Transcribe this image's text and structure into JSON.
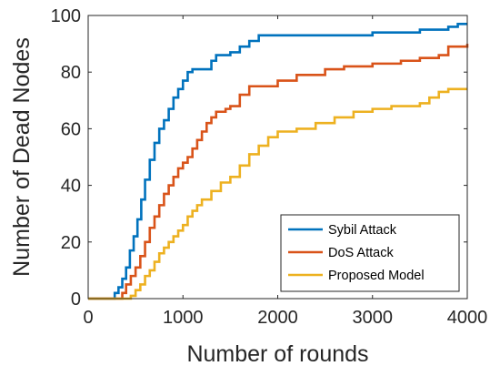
{
  "chart_data": {
    "type": "line",
    "title": "",
    "xlabel": "Number of rounds",
    "ylabel": "Number of Dead Nodes",
    "xlim": [
      0,
      4000
    ],
    "ylim": [
      0,
      100
    ],
    "xticks": [
      0,
      1000,
      2000,
      3000,
      4000
    ],
    "yticks": [
      0,
      20,
      40,
      60,
      80,
      100
    ],
    "grid": false,
    "legend_position": "bottom-right",
    "series": [
      {
        "name": "Sybil Attack",
        "color": "#0072BD",
        "x": [
          0,
          250,
          280,
          320,
          360,
          400,
          440,
          480,
          520,
          560,
          600,
          650,
          700,
          750,
          800,
          850,
          900,
          950,
          1000,
          1050,
          1100,
          1200,
          1300,
          1350,
          1400,
          1500,
          1600,
          1700,
          1800,
          2000,
          2500,
          3000,
          3500,
          3800,
          3900,
          4000
        ],
        "y": [
          0,
          0,
          2,
          4,
          7,
          11,
          17,
          22,
          28,
          35,
          42,
          49,
          55,
          60,
          63,
          67,
          71,
          74,
          77,
          80,
          81,
          81,
          84,
          86,
          86,
          87,
          89,
          91,
          93,
          93,
          93,
          94,
          95,
          96,
          97,
          97
        ]
      },
      {
        "name": "DoS Attack",
        "color": "#D95319",
        "x": [
          0,
          330,
          360,
          400,
          450,
          500,
          550,
          600,
          650,
          700,
          750,
          800,
          850,
          900,
          950,
          1000,
          1050,
          1100,
          1150,
          1200,
          1250,
          1300,
          1350,
          1400,
          1450,
          1500,
          1600,
          1700,
          1800,
          2000,
          2200,
          2500,
          2700,
          3000,
          3300,
          3500,
          3700,
          3800,
          4000
        ],
        "y": [
          0,
          0,
          2,
          5,
          8,
          11,
          15,
          20,
          25,
          29,
          33,
          37,
          40,
          43,
          46,
          48,
          50,
          53,
          56,
          59,
          62,
          64,
          66,
          66,
          67,
          68,
          72,
          75,
          75,
          77,
          79,
          81,
          82,
          83,
          84,
          85,
          86,
          89,
          90
        ]
      },
      {
        "name": "Proposed Model",
        "color": "#EDB120",
        "x": [
          0,
          420,
          450,
          500,
          550,
          600,
          650,
          700,
          750,
          800,
          850,
          900,
          950,
          1000,
          1050,
          1100,
          1150,
          1200,
          1300,
          1400,
          1500,
          1600,
          1700,
          1800,
          1900,
          2000,
          2200,
          2400,
          2600,
          2800,
          3000,
          3200,
          3500,
          3600,
          3700,
          3800,
          4000
        ],
        "y": [
          0,
          0,
          1,
          3,
          5,
          8,
          10,
          13,
          16,
          18,
          20,
          22,
          24,
          26,
          29,
          31,
          33,
          35,
          38,
          41,
          43,
          47,
          51,
          54,
          57,
          59,
          60,
          62,
          64,
          66,
          67,
          68,
          69,
          71,
          73,
          74,
          74
        ]
      }
    ]
  }
}
